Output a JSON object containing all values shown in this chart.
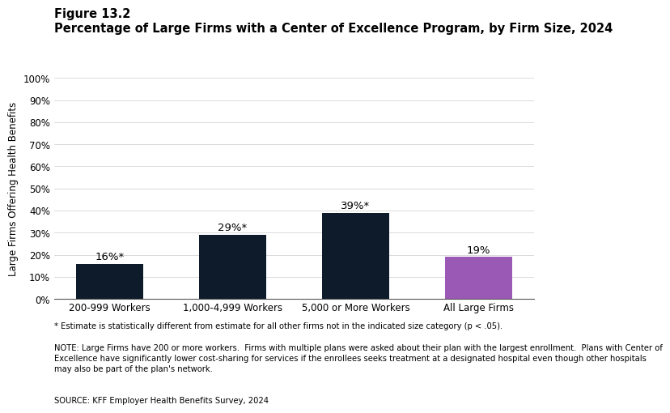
{
  "figure_label": "Figure 13.2",
  "title": "Percentage of Large Firms with a Center of Excellence Program, by Firm Size, 2024",
  "categories": [
    "200-999 Workers",
    "1,000-4,999 Workers",
    "5,000 or More Workers",
    "All Large Firms"
  ],
  "values": [
    16,
    29,
    39,
    19
  ],
  "bar_labels": [
    "16%*",
    "29%*",
    "39%*",
    "19%"
  ],
  "bar_colors": [
    "#0d1b2a",
    "#0d1b2a",
    "#0d1b2a",
    "#9b59b6"
  ],
  "ylabel": "Large Firms Offering Health Benefits",
  "ylim": [
    0,
    100
  ],
  "yticks": [
    0,
    10,
    20,
    30,
    40,
    50,
    60,
    70,
    80,
    90,
    100
  ],
  "ytick_labels": [
    "0%",
    "10%",
    "20%",
    "30%",
    "40%",
    "50%",
    "60%",
    "70%",
    "80%",
    "90%",
    "100%"
  ],
  "footnote1": "* Estimate is statistically different from estimate for all other firms not in the indicated size category (p < .05).",
  "footnote2": "NOTE: Large Firms have 200 or more workers.  Firms with multiple plans were asked about their plan with the largest enrollment.  Plans with Center of\nExcellence have significantly lower cost-sharing for services if the enrollees seeks treatment at a designated hospital even though other hospitals\nmay also be part of the plan's network.",
  "footnote3": "SOURCE: KFF Employer Health Benefits Survey, 2024",
  "background_color": "#ffffff",
  "bar_width": 0.55,
  "label_fontsize": 9.5,
  "title_fontsize": 10.5,
  "figure_label_fontsize": 10.5,
  "tick_fontsize": 8.5,
  "ylabel_fontsize": 8.5,
  "footnote_fontsize": 7.2
}
